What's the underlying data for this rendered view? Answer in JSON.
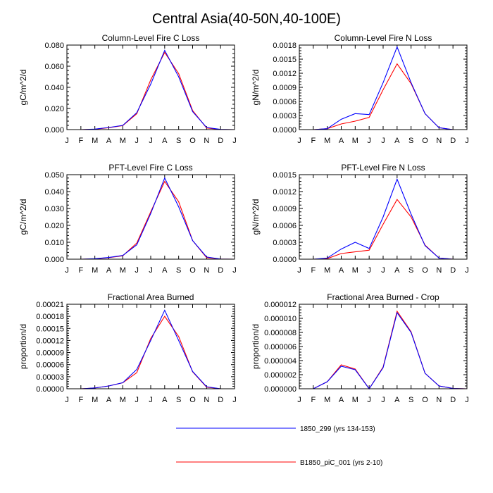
{
  "title": "Central Asia(40-50N,40-100E)",
  "legend": [
    {
      "label": "1850_299 (yrs 134-153)",
      "color": "#0000ff"
    },
    {
      "label": "B1850_piC_001 (yrs 2-10)",
      "color": "#ff0000"
    }
  ],
  "chart_data": [
    {
      "type": "line",
      "title": "Column-Level Fire C Loss",
      "ylabel": "gC/m^2/d",
      "categories": [
        "J",
        "F",
        "M",
        "A",
        "M",
        "J",
        "J",
        "A",
        "S",
        "O",
        "N",
        "D",
        "J"
      ],
      "ylim": [
        0,
        0.08
      ],
      "yticks": [
        "0.000",
        "0.020",
        "0.040",
        "0.060",
        "0.080"
      ],
      "series": [
        {
          "name": "1850_299 (yrs 134-153)",
          "color": "#0000ff",
          "values": [
            0.0,
            0.0,
            0.0005,
            0.002,
            0.004,
            0.016,
            0.043,
            0.075,
            0.05,
            0.017,
            0.002,
            0.0002,
            0.0
          ]
        },
        {
          "name": "B1850_piC_001 (yrs 2-10)",
          "color": "#ff0000",
          "values": [
            0.0,
            0.0,
            0.0004,
            0.0018,
            0.0038,
            0.015,
            0.047,
            0.073,
            0.053,
            0.018,
            0.0015,
            0.0001,
            0.0
          ]
        }
      ]
    },
    {
      "type": "line",
      "title": "Column-Level Fire N Loss",
      "ylabel": "gN/m^2/d",
      "categories": [
        "J",
        "F",
        "M",
        "A",
        "M",
        "J",
        "J",
        "A",
        "S",
        "O",
        "N",
        "D",
        "J"
      ],
      "ylim": [
        0,
        0.0018
      ],
      "yticks": [
        "0.0000",
        "0.0003",
        "0.0006",
        "0.0009",
        "0.0012",
        "0.0015",
        "0.0018"
      ],
      "series": [
        {
          "name": "1850_299 (yrs 134-153)",
          "color": "#0000ff",
          "values": [
            0.0,
            0.0,
            2e-05,
            0.00022,
            0.00034,
            0.00032,
            0.001,
            0.00176,
            0.001,
            0.00034,
            4e-05,
            0.0,
            0.0
          ]
        },
        {
          "name": "B1850_piC_001 (yrs 2-10)",
          "color": "#ff0000",
          "values": [
            0.0,
            0.0,
            2e-05,
            0.00012,
            0.00018,
            0.00026,
            0.00085,
            0.0014,
            0.00098,
            0.00034,
            4e-05,
            0.0,
            0.0
          ]
        }
      ]
    },
    {
      "type": "line",
      "title": "PFT-Level Fire C Loss",
      "ylabel": "gC/m^2/d",
      "categories": [
        "J",
        "F",
        "M",
        "A",
        "M",
        "J",
        "J",
        "A",
        "S",
        "O",
        "N",
        "D",
        "J"
      ],
      "ylim": [
        0,
        0.05
      ],
      "yticks": [
        "0.000",
        "0.010",
        "0.020",
        "0.030",
        "0.040",
        "0.050"
      ],
      "series": [
        {
          "name": "1850_299 (yrs 134-153)",
          "color": "#0000ff",
          "values": [
            0.0,
            0.0,
            0.0003,
            0.001,
            0.0022,
            0.0085,
            0.027,
            0.048,
            0.031,
            0.011,
            0.0013,
            0.0001,
            0.0
          ]
        },
        {
          "name": "B1850_piC_001 (yrs 2-10)",
          "color": "#ff0000",
          "values": [
            0.0,
            0.0,
            0.0002,
            0.0009,
            0.002,
            0.0095,
            0.028,
            0.046,
            0.034,
            0.011,
            0.0009,
            0.0001,
            0.0
          ]
        }
      ]
    },
    {
      "type": "line",
      "title": "PFT-Level Fire N Loss",
      "ylabel": "gN/m^2/d",
      "categories": [
        "J",
        "F",
        "M",
        "A",
        "M",
        "J",
        "J",
        "A",
        "S",
        "O",
        "N",
        "D",
        "J"
      ],
      "ylim": [
        0,
        0.0015
      ],
      "yticks": [
        "0.0000",
        "0.0003",
        "0.0006",
        "0.0009",
        "0.0012",
        "0.0015"
      ],
      "series": [
        {
          "name": "1850_299 (yrs 134-153)",
          "color": "#0000ff",
          "values": [
            0.0,
            0.0,
            2e-05,
            0.00018,
            0.0003,
            0.00019,
            0.00075,
            0.00142,
            0.0008,
            0.00024,
            2e-05,
            0.0,
            0.0
          ]
        },
        {
          "name": "B1850_piC_001 (yrs 2-10)",
          "color": "#ff0000",
          "values": [
            0.0,
            0.0,
            1e-05,
            0.0001,
            0.00013,
            0.00016,
            0.00062,
            0.00106,
            0.00075,
            0.00025,
            2e-05,
            0.0,
            0.0
          ]
        }
      ]
    },
    {
      "type": "line",
      "title": "Fractional Area Burned",
      "ylabel": "proportion/d",
      "categories": [
        "J",
        "F",
        "M",
        "A",
        "M",
        "J",
        "J",
        "A",
        "S",
        "O",
        "N",
        "D",
        "J"
      ],
      "ylim": [
        0,
        0.00021
      ],
      "yticks": [
        "0.00000",
        "0.00003",
        "0.00006",
        "0.00009",
        "0.00012",
        "0.00015",
        "0.00018",
        "0.00021"
      ],
      "series": [
        {
          "name": "1850_299 (yrs 134-153)",
          "color": "#0000ff",
          "values": [
            0.0,
            0.0,
            2e-06,
            7e-06,
            1.5e-05,
            4.8e-05,
            0.00012,
            0.000195,
            0.00012,
            4.3e-05,
            5e-06,
            0.0,
            0.0
          ]
        },
        {
          "name": "B1850_piC_001 (yrs 2-10)",
          "color": "#ff0000",
          "values": [
            0.0,
            0.0,
            2e-06,
            7e-06,
            1.5e-05,
            4e-05,
            0.000125,
            0.00018,
            0.00013,
            4.2e-05,
            4e-06,
            0.0,
            0.0
          ]
        }
      ]
    },
    {
      "type": "line",
      "title": "Fractional Area Burned - Crop",
      "ylabel": "proportion/d",
      "categories": [
        "J",
        "F",
        "M",
        "A",
        "M",
        "J",
        "J",
        "A",
        "S",
        "O",
        "N",
        "D",
        "J"
      ],
      "ylim": [
        0,
        1.2e-05
      ],
      "yticks": [
        "0.000000",
        "0.000002",
        "0.000004",
        "0.000006",
        "0.000008",
        "0.000010",
        "0.000012"
      ],
      "series": [
        {
          "name": "1850_299 (yrs 134-153)",
          "color": "#0000ff",
          "values": [
            0.0,
            0.0,
            1e-06,
            3.2e-06,
            2.7e-06,
            0.0,
            3e-06,
            1.08e-05,
            8e-06,
            2.2e-06,
            4e-07,
            5e-08,
            0.0
          ]
        },
        {
          "name": "B1850_piC_001 (yrs 2-10)",
          "color": "#ff0000",
          "values": [
            0.0,
            0.0,
            1e-06,
            3.4e-06,
            2.8e-06,
            0.0,
            3.1e-06,
            1.1e-05,
            8.1e-06,
            2.2e-06,
            4e-07,
            5e-08,
            0.0
          ]
        }
      ]
    }
  ]
}
